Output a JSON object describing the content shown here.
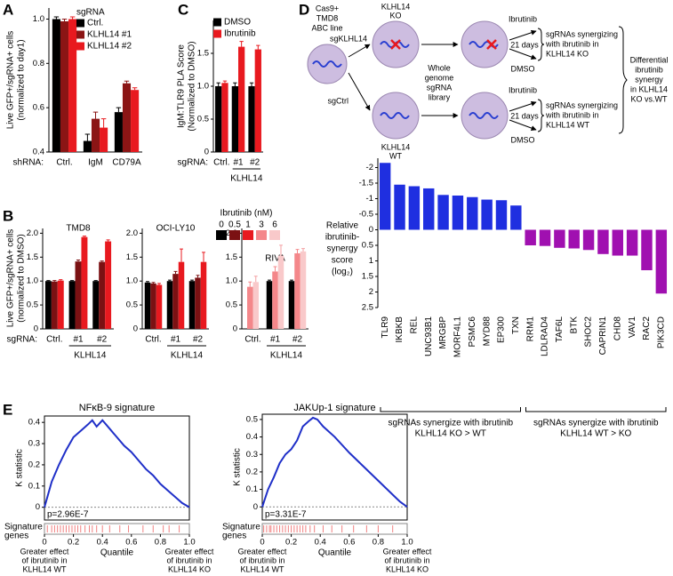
{
  "panel_letters": [
    "A",
    "B",
    "C",
    "D",
    "E"
  ],
  "chart_data": [
    {
      "type": "bar",
      "ylabel": [
        "Live GFP+/sgRNA+ cells",
        "(normalized to day1)"
      ],
      "x_prefix": "shRNA:",
      "categories": [
        "Ctrl.",
        "IgM",
        "CD79A"
      ],
      "legend_title": "sgRNA",
      "series": [
        {
          "name": "Ctrl.",
          "color": "#000000",
          "values": [
            1.0,
            0.45,
            0.58
          ],
          "errors": [
            0.01,
            0.03,
            0.02
          ]
        },
        {
          "name": "KLHL14 #1",
          "color": "#8b1515",
          "values": [
            0.99,
            0.55,
            0.71
          ],
          "errors": [
            0.01,
            0.03,
            0.01
          ]
        },
        {
          "name": "KLHL14 #2",
          "color": "#e8191f",
          "values": [
            1.0,
            0.51,
            0.68
          ],
          "errors": [
            0.01,
            0.04,
            0.01
          ]
        }
      ],
      "ylim": [
        0.4,
        1.05
      ],
      "yticks": [
        0.4,
        0.6,
        0.8,
        {
          "value": 1,
          "label": "1.0"
        }
      ]
    },
    {
      "type": "bar",
      "ylabel": [
        "IgM:TLR9 PLA Score",
        "(Normalized to DMSO)"
      ],
      "x_prefix": "sgRNA:",
      "categories": [
        "Ctrl.",
        "#1",
        "#2"
      ],
      "group_label": "KLHL14",
      "series": [
        {
          "name": "DMSO",
          "color": "#000000",
          "values": [
            1.0,
            1.0,
            1.0
          ],
          "errors": [
            0.05,
            0.05,
            0.05
          ]
        },
        {
          "name": "Ibrutinib",
          "color": "#e8191f",
          "values": [
            1.05,
            1.6,
            1.56
          ],
          "errors": [
            0.03,
            0.08,
            0.06
          ]
        }
      ],
      "ylim": [
        0,
        2.0
      ],
      "yticks": [
        0,
        0.5,
        {
          "value": 1,
          "label": "1.0"
        },
        1.5
      ]
    },
    {
      "type": "bar",
      "ylabel": [
        "Live GFP+/sgRNA+ cells",
        "(normalized to DMSO)"
      ],
      "x_prefix": "sgRNA:",
      "group_label": "KLHL14",
      "legend_title": "Ibrutinib (nM)",
      "levels": [
        {
          "name": "0",
          "color": "#000000"
        },
        {
          "name": "0.5",
          "color": "#7b1113"
        },
        {
          "name": "1",
          "color": "#e8191f"
        },
        {
          "name": "3",
          "color": "#f4878a"
        },
        {
          "name": "6",
          "color": "#f9c9ca"
        }
      ],
      "ylim": [
        0,
        2.1
      ],
      "yticks": [
        0,
        0.5,
        {
          "value": 1,
          "label": "1.0"
        },
        1.5,
        {
          "value": 2,
          "label": "2.0"
        }
      ],
      "panels": [
        {
          "title": "TMD8",
          "categories": [
            "Ctrl.",
            "#1",
            "#2"
          ],
          "values": [
            [
              1.0,
              1.0,
              1.0
            ],
            [
              0.99,
              1.41,
              1.4
            ],
            [
              1.01,
              1.92,
              1.83
            ],
            [
              null,
              null,
              null
            ],
            [
              null,
              null,
              null
            ]
          ],
          "errors": [
            [
              0.01,
              0.01,
              0.01
            ],
            [
              0.02,
              0.03,
              0.02
            ],
            [
              0.02,
              0.02,
              0.03
            ],
            [
              null,
              null,
              null
            ],
            [
              null,
              null,
              null
            ]
          ]
        },
        {
          "title": "OCI-LY10",
          "categories": [
            "Ctrl.",
            "#1",
            "#2"
          ],
          "values": [
            [
              0.97,
              1.0,
              1.0
            ],
            [
              0.95,
              1.15,
              1.07
            ],
            [
              0.92,
              1.4,
              1.4
            ],
            [
              null,
              null,
              null
            ],
            [
              null,
              null,
              null
            ]
          ],
          "errors": [
            [
              0.02,
              0.02,
              0.02
            ],
            [
              0.02,
              0.05,
              0.05
            ],
            [
              0.03,
              0.27,
              0.2
            ],
            [
              null,
              null,
              null
            ],
            [
              null,
              null,
              null
            ]
          ]
        },
        {
          "title": "RIVA",
          "categories": [
            "Ctrl.",
            "#1",
            "#2"
          ],
          "values": [
            [
              null,
              1.0,
              1.0
            ],
            [
              null,
              null,
              null
            ],
            [
              null,
              null,
              null
            ],
            [
              0.88,
              1.2,
              1.58
            ],
            [
              0.98,
              1.53,
              1.62
            ]
          ],
          "errors": [
            [
              null,
              0.02,
              0.02
            ],
            [
              null,
              null,
              null
            ],
            [
              null,
              null,
              null
            ],
            [
              0.1,
              0.1,
              0.08
            ],
            [
              0.12,
              0.22,
              0.06
            ]
          ]
        }
      ]
    },
    {
      "type": "bar",
      "ylabel": [
        "Relative",
        "ibrutinib-",
        "synergy",
        "score",
        "(log₂)"
      ],
      "inverted": true,
      "ylim": [
        -2.3,
        2.5
      ],
      "yticks": [
        -2,
        -1.5,
        -1,
        -0.5,
        0,
        0.5,
        1,
        1.5,
        2,
        2.5
      ],
      "groups": [
        {
          "label": [
            "sgRNAs synergize with ibrutinib",
            "KLHL14 KO > WT"
          ],
          "color": "#1f2fe0",
          "categories": [
            "TLR9",
            "IKBKB",
            "REL",
            "UNC93B1",
            "MRGBP",
            "MORF4L1",
            "PSMC6",
            "MYD88",
            "EP300",
            "TXN"
          ],
          "values": [
            -2.15,
            -1.45,
            -1.4,
            -1.33,
            -1.12,
            -1.1,
            -1.05,
            -0.97,
            -0.95,
            -0.78
          ],
          "label_colors": [
            "#e8191f",
            "#e8191f",
            "#e8191f",
            "#e8191f",
            "#000000",
            "#000000",
            "#000000",
            "#e8191f",
            "#000000",
            "#000000"
          ]
        },
        {
          "label": [
            "sgRNAs synergize with ibrutinib",
            "KLHL14 WT > KO"
          ],
          "color": "#a010b0",
          "categories": [
            "RRM1",
            "LDLRAD4",
            "TAF6L",
            "BTK",
            "SHOC2",
            "CAPRIN1",
            "CHD8",
            "VAV1",
            "RAC2",
            "PIK3CD"
          ],
          "values": [
            0.5,
            0.52,
            0.58,
            0.6,
            0.65,
            0.78,
            0.83,
            0.83,
            1.3,
            2.05
          ],
          "label_colors": [
            "#000000",
            "#000000",
            "#000000",
            "#e8191f",
            "#000000",
            "#000000",
            "#000000",
            "#e8191f",
            "#e8191f",
            "#e8191f"
          ]
        }
      ]
    },
    {
      "type": "line",
      "title": "NFκB-9 signature",
      "ylabel": "K statistic",
      "p_value": "p=2.96E-7",
      "xlabel": "Quantile",
      "strip_label": [
        "Signature",
        "genes"
      ],
      "left_note": [
        "Greater effect",
        "of ibrutinib in",
        "KLHL14 WT"
      ],
      "right_note": [
        "Greater effect",
        "of ibrutinib in",
        "KLHL14 KO"
      ],
      "color": "#1f2fc8",
      "xlim": [
        0,
        1
      ],
      "ylim": [
        -0.06,
        0.43
      ],
      "xticks": [
        0,
        0.2,
        0.4,
        0.6,
        0.8,
        {
          "value": 1,
          "label": "1.0"
        }
      ],
      "yticks": [
        0,
        0.1,
        0.2,
        0.3,
        0.4
      ],
      "x": [
        0,
        0.05,
        0.1,
        0.15,
        0.2,
        0.25,
        0.3,
        0.33,
        0.36,
        0.4,
        0.45,
        0.5,
        0.55,
        0.6,
        0.65,
        0.7,
        0.75,
        0.8,
        0.85,
        0.9,
        0.95,
        1.0
      ],
      "y": [
        0,
        0.12,
        0.2,
        0.27,
        0.33,
        0.36,
        0.39,
        0.41,
        0.38,
        0.41,
        0.37,
        0.33,
        0.29,
        0.26,
        0.22,
        0.18,
        0.15,
        0.11,
        0.08,
        0.05,
        0.02,
        0
      ],
      "gene_positions": [
        0.02,
        0.05,
        0.07,
        0.09,
        0.11,
        0.13,
        0.15,
        0.17,
        0.19,
        0.21,
        0.23,
        0.25,
        0.28,
        0.31,
        0.33,
        0.36,
        0.4,
        0.45,
        0.52,
        0.58,
        0.68,
        0.75,
        0.82,
        0.86,
        0.93
      ],
      "gene_color": "#f08080"
    },
    {
      "type": "line",
      "title": "JAKUp-1 signature",
      "ylabel": "K statistic",
      "p_value": "p=3.31E-7",
      "xlabel": "Quantile",
      "strip_label": [
        "Signature",
        "genes"
      ],
      "left_note": [
        "Greater effect",
        "of ibrutinib in",
        "KLHL14 WT"
      ],
      "right_note": [
        "Greater effect",
        "of ibrutinib in",
        "KLHL14 KO"
      ],
      "color": "#1f2fc8",
      "xlim": [
        0,
        1
      ],
      "ylim": [
        -0.075,
        0.53
      ],
      "xticks": [
        0,
        0.2,
        0.4,
        0.6,
        0.8,
        {
          "value": 1,
          "label": "1.0"
        }
      ],
      "yticks": [
        0,
        0.1,
        0.2,
        0.3,
        0.4,
        0.5
      ],
      "x": [
        0,
        0.04,
        0.08,
        0.12,
        0.16,
        0.2,
        0.24,
        0.26,
        0.28,
        0.32,
        0.35,
        0.38,
        0.42,
        0.5,
        0.6,
        0.7,
        0.8,
        0.9,
        0.95,
        1.0
      ],
      "y": [
        0,
        0.1,
        0.17,
        0.25,
        0.3,
        0.33,
        0.38,
        0.42,
        0.46,
        0.49,
        0.51,
        0.5,
        0.46,
        0.4,
        0.31,
        0.23,
        0.15,
        0.07,
        0.03,
        0
      ],
      "gene_positions": [
        0.01,
        0.03,
        0.05,
        0.06,
        0.08,
        0.1,
        0.12,
        0.14,
        0.16,
        0.18,
        0.2,
        0.22,
        0.24,
        0.26,
        0.28,
        0.3,
        0.33,
        0.36,
        0.42,
        0.48,
        0.55,
        0.63,
        0.72,
        0.8,
        0.9
      ],
      "gene_color": "#f08080"
    }
  ],
  "diagram": {
    "cas9_line": [
      "Cas9+",
      "TMD8",
      "ABC line"
    ],
    "sg_klhl14": "sgKLHL14",
    "sg_ctrl": "sgCtrl",
    "ko_label": [
      "KLHL14",
      "KO"
    ],
    "wt_label": [
      "KLHL14",
      "WT"
    ],
    "library": [
      "Whole",
      "genome",
      "sgRNA",
      "library"
    ],
    "ibrutinib": "Ibrutinib",
    "days": "21 days",
    "dmso": "DMSO",
    "ko_result": [
      "sgRNAs synergizing",
      "with ibrutinib in",
      "KLHL14 KO"
    ],
    "wt_result": [
      "sgRNAs synergizing",
      "with ibrutinib in",
      "KLHL14 WT"
    ],
    "differential": [
      "Differential",
      "ibrutinib",
      "synergy",
      "in KLHL14",
      "KO vs.WT"
    ]
  }
}
